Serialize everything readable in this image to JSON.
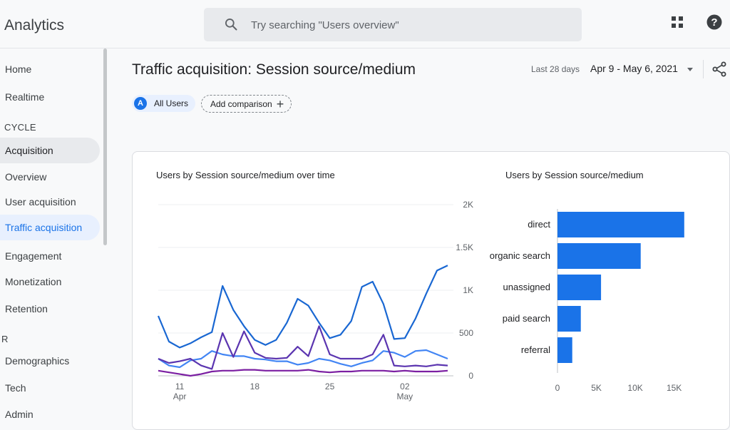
{
  "app": {
    "title": "Analytics"
  },
  "search": {
    "placeholder": "Try searching \"Users overview\""
  },
  "sidebar": {
    "items": [
      {
        "label": "Home"
      },
      {
        "label": "Realtime"
      },
      {
        "label": "CYCLE"
      },
      {
        "label": "Acquisition"
      },
      {
        "label": "Overview"
      },
      {
        "label": "User acquisition"
      },
      {
        "label": "Traffic acquisition"
      },
      {
        "label": "Engagement"
      },
      {
        "label": "Monetization"
      },
      {
        "label": "Retention"
      },
      {
        "label": "R"
      },
      {
        "label": "Demographics"
      },
      {
        "label": "Tech"
      },
      {
        "label": "Admin"
      }
    ]
  },
  "page": {
    "title": "Traffic acquisition: Session source/medium",
    "date_caption": "Last 28 days",
    "date_range": "Apr 9 - May 6, 2021"
  },
  "chips": {
    "badge": "A",
    "users": "All Users",
    "add_comparison": "Add comparison"
  },
  "colors": {
    "accent": "#1a73e8",
    "bar": "#1a73e8"
  },
  "icons": [
    "search-icon",
    "apps-grid-icon",
    "help-icon",
    "share-icon",
    "plus-icon",
    "chevron-down-icon"
  ],
  "chart_data": [
    {
      "type": "line",
      "title": "Users by Session source/medium over time",
      "x": [
        "Apr 9",
        "Apr 10",
        "Apr 11",
        "Apr 12",
        "Apr 13",
        "Apr 14",
        "Apr 15",
        "Apr 16",
        "Apr 17",
        "Apr 18",
        "Apr 19",
        "Apr 20",
        "Apr 21",
        "Apr 22",
        "Apr 23",
        "Apr 24",
        "Apr 25",
        "Apr 26",
        "Apr 27",
        "Apr 28",
        "Apr 29",
        "Apr 30",
        "May 1",
        "May 2",
        "May 3",
        "May 4",
        "May 5",
        "May 6"
      ],
      "x_ticks": [
        {
          "index": 2,
          "label": "11",
          "sublabel": "Apr"
        },
        {
          "index": 9,
          "label": "18",
          "sublabel": ""
        },
        {
          "index": 16,
          "label": "25",
          "sublabel": ""
        },
        {
          "index": 23,
          "label": "02",
          "sublabel": "May"
        }
      ],
      "y_ticks": [
        "0",
        "500",
        "1K",
        "1.5K",
        "2K"
      ],
      "ylim": [
        0,
        2000
      ],
      "grid": true,
      "series": [
        {
          "color": "#1967d2",
          "values": [
            700,
            400,
            330,
            380,
            450,
            510,
            1050,
            770,
            580,
            420,
            360,
            420,
            620,
            900,
            820,
            620,
            440,
            480,
            640,
            1040,
            1100,
            840,
            430,
            440,
            670,
            960,
            1230,
            1290
          ]
        },
        {
          "color": "#4285f4",
          "values": [
            200,
            120,
            100,
            180,
            200,
            290,
            250,
            230,
            230,
            200,
            190,
            170,
            170,
            130,
            150,
            200,
            180,
            140,
            110,
            150,
            180,
            290,
            270,
            220,
            290,
            300,
            250,
            200
          ]
        },
        {
          "color": "#5b35b0",
          "values": [
            200,
            150,
            170,
            200,
            120,
            80,
            500,
            220,
            520,
            270,
            210,
            200,
            210,
            340,
            230,
            580,
            250,
            200,
            200,
            200,
            250,
            480,
            120,
            110,
            120,
            110,
            130,
            120
          ]
        },
        {
          "color": "#7b1fa2",
          "values": [
            60,
            40,
            20,
            0,
            20,
            50,
            60,
            60,
            70,
            70,
            60,
            60,
            60,
            60,
            70,
            50,
            40,
            50,
            50,
            60,
            60,
            60,
            50,
            60,
            50,
            50,
            50,
            60
          ]
        }
      ]
    },
    {
      "type": "bar",
      "title": "Users by Session source/medium",
      "categories": [
        "direct",
        "organic search",
        "unassigned",
        "paid search",
        "referral"
      ],
      "values": [
        16300,
        10700,
        5600,
        3000,
        1900
      ],
      "x_ticks": [
        "0",
        "5K",
        "10K",
        "15K"
      ],
      "xlim": [
        0,
        16500
      ]
    }
  ]
}
